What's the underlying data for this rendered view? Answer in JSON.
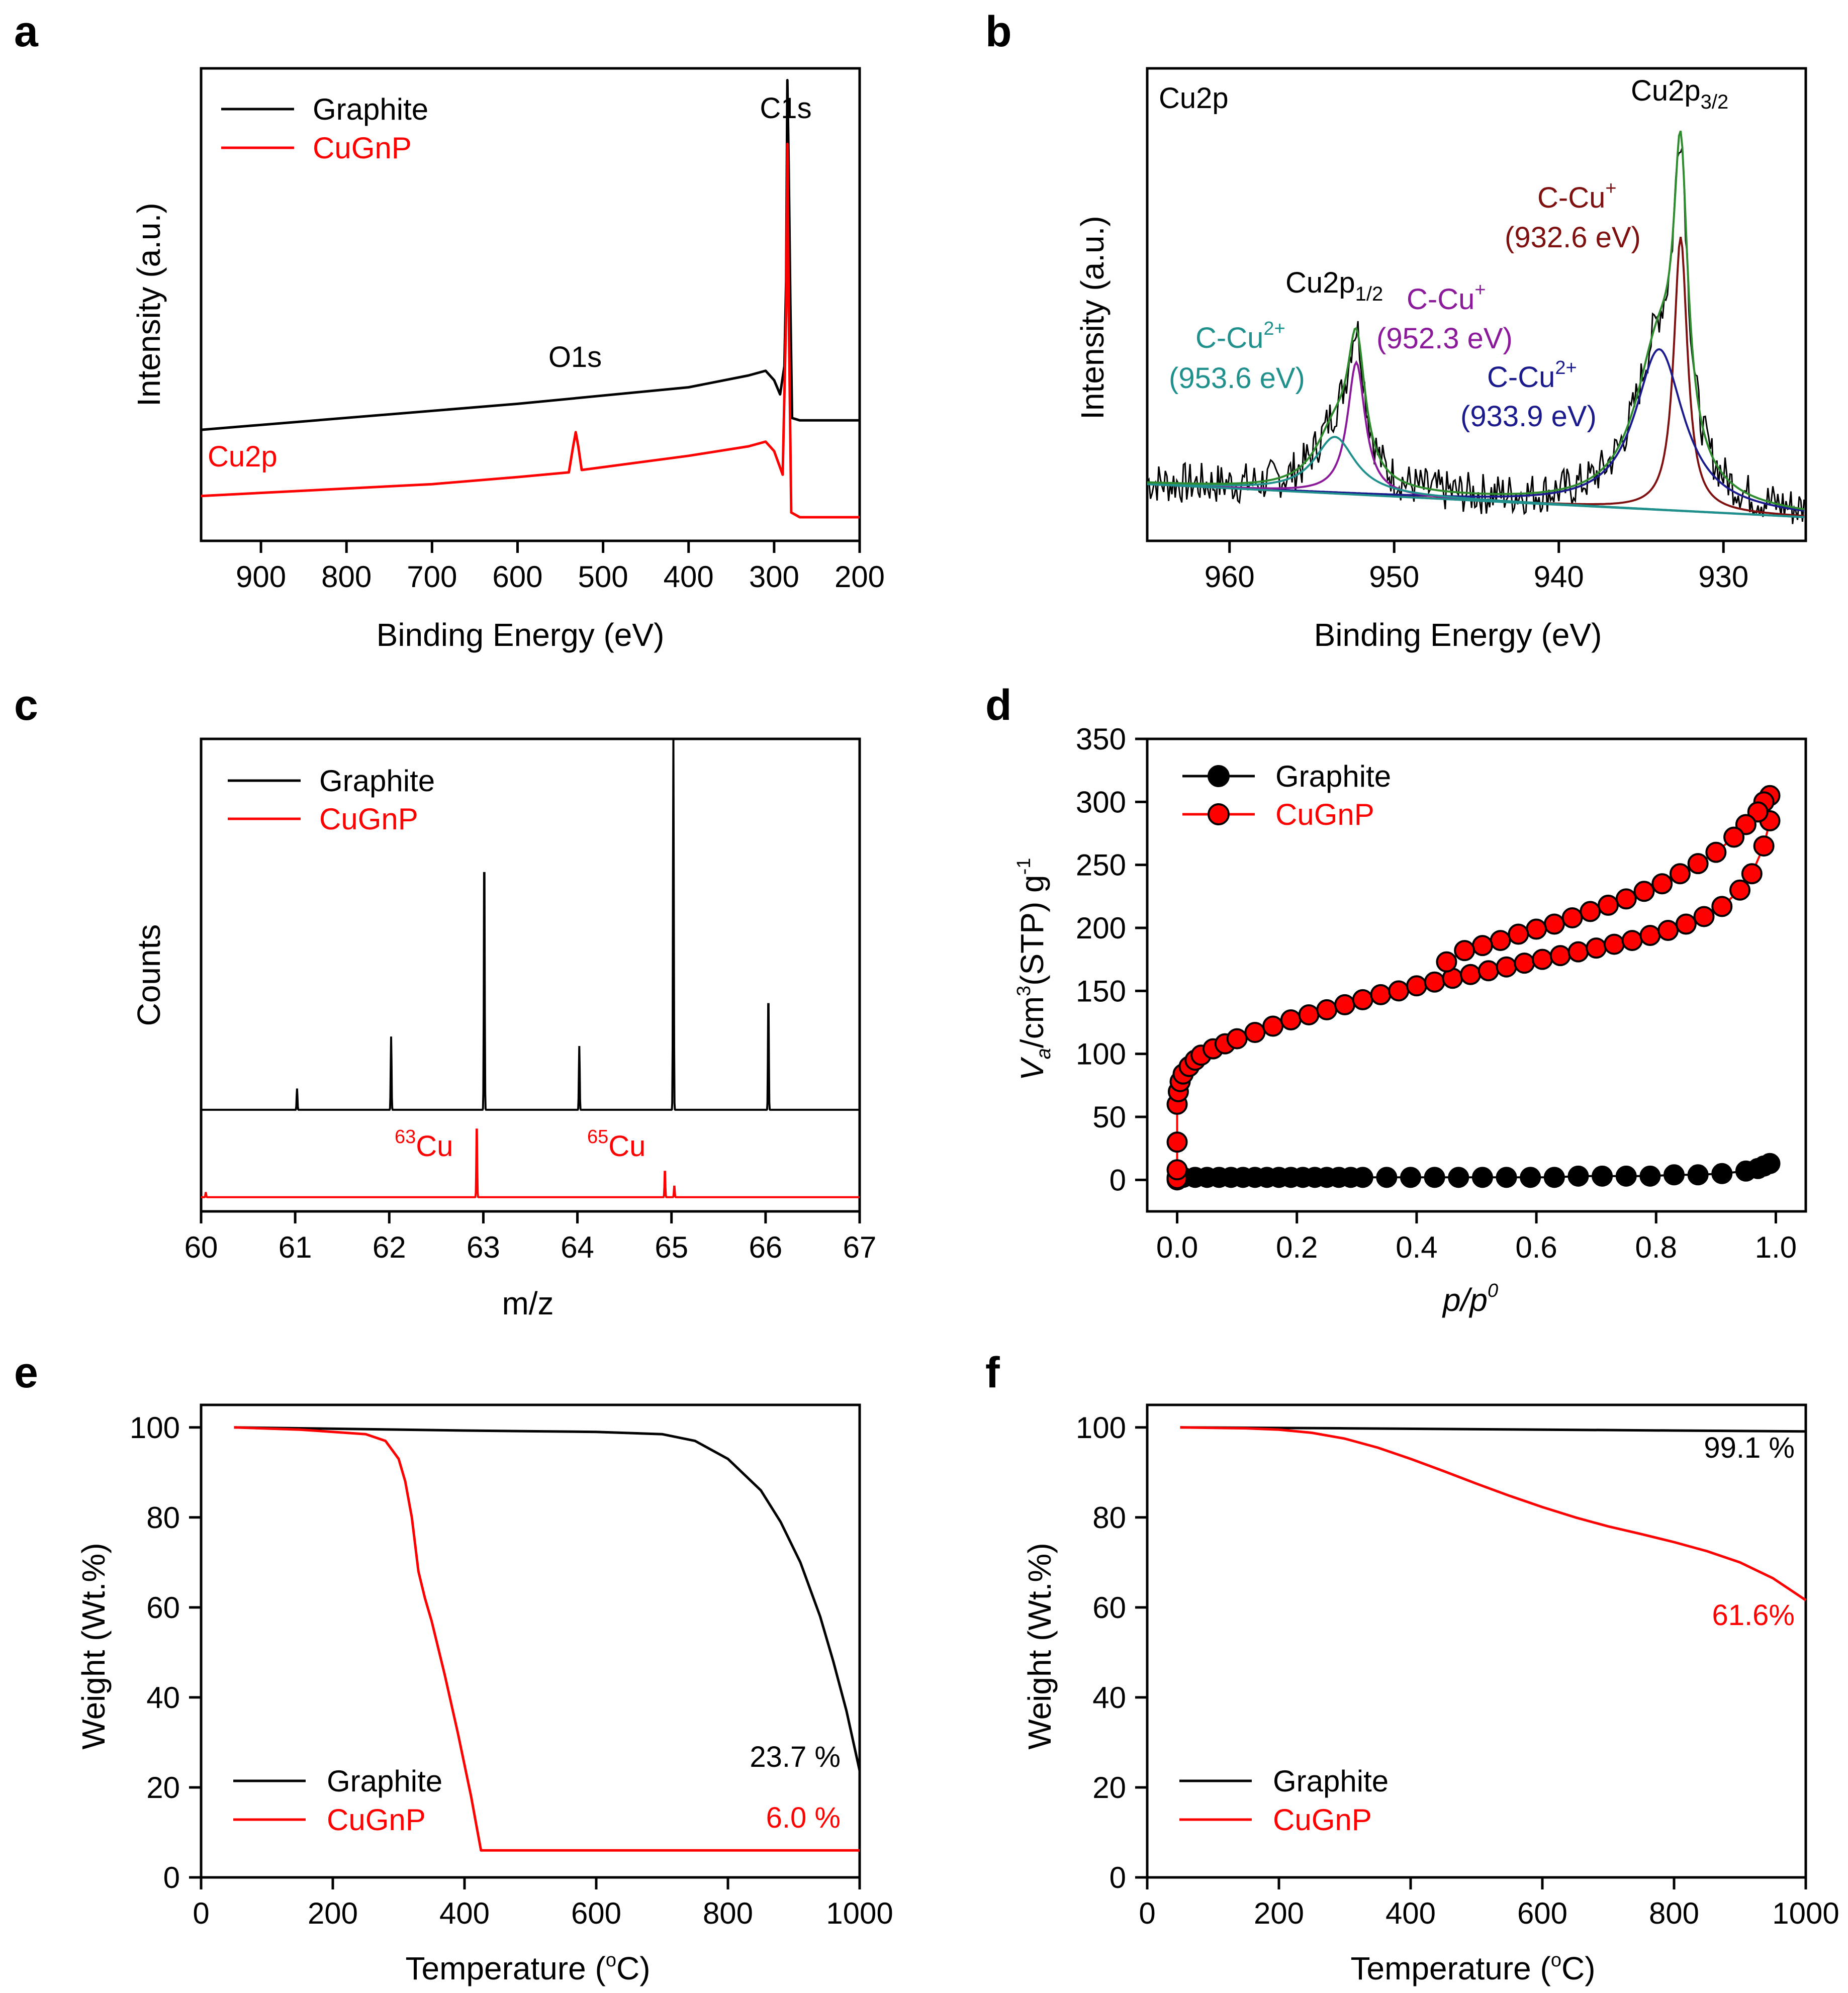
{
  "panels": [
    {
      "label": "a",
      "type": "line",
      "xlabel": "Binding Energy (eV)",
      "ylabel": "Intensity (a.u.)",
      "xlim": [
        970,
        200
      ],
      "xticks": [
        900,
        800,
        700,
        600,
        500,
        400,
        300,
        200
      ],
      "legend": [
        "Graphite",
        "CuGnP"
      ],
      "annotations": {
        "c1s": "C1s",
        "o1s": "O1s",
        "cu2p": "Cu2p"
      },
      "series": [
        {
          "name": "Graphite",
          "color": "#000000",
          "x": [
            970,
            600,
            400,
            330,
            310,
            300,
            293,
            288,
            286,
            284.5,
            283,
            281,
            279,
            270,
            200
          ],
          "y": [
            0.235,
            0.29,
            0.325,
            0.35,
            0.36,
            0.34,
            0.31,
            0.37,
            0.55,
            0.975,
            0.8,
            0.5,
            0.26,
            0.255,
            0.255
          ]
        },
        {
          "name": "CuGnP",
          "color": "#ff0000",
          "x": [
            970,
            700,
            600,
            540,
            535,
            532,
            529,
            525,
            400,
            330,
            310,
            300,
            290,
            286,
            284.5,
            283,
            280,
            270,
            200
          ],
          "y": [
            0.095,
            0.12,
            0.135,
            0.145,
            0.2,
            0.23,
            0.2,
            0.15,
            0.18,
            0.2,
            0.21,
            0.19,
            0.14,
            0.48,
            0.84,
            0.5,
            0.06,
            0.05,
            0.05
          ]
        }
      ]
    },
    {
      "label": "b",
      "type": "line",
      "xlabel": "Binding Energy (eV)",
      "ylabel": "Intensity (a.u.)",
      "xlim": [
        965,
        925
      ],
      "xticks": [
        960,
        950,
        940,
        930
      ],
      "title": "Cu2p",
      "annotations": {
        "cu2p32": "Cu2p",
        "cu2p32_sub": "3/2",
        "cu2p12": "Cu2p",
        "cu2p12_sub": "1/2",
        "ccu_plus_a": "C-Cu",
        "ccu_plus_a_sup": "+",
        "ccu_plus_a_val": "(932.6 eV)",
        "ccu_plus_b": "C-Cu",
        "ccu_plus_b_sup": "+",
        "ccu_plus_b_val": "(952.3 eV)",
        "ccu2_a": "C-Cu",
        "ccu2_a_sup": "2+",
        "ccu2_a_val": "(953.6 eV)",
        "ccu2_b": "C-Cu",
        "ccu2_b_sup": "2+",
        "ccu2_b_val": "(933.9 eV)"
      },
      "peaks": [
        {
          "name": "C-Cu+ 932.6",
          "center": 932.6,
          "fwhm": 1.0,
          "amp": 0.58,
          "color": "#7f1010"
        },
        {
          "name": "C-Cu2+ 933.9",
          "center": 933.9,
          "fwhm": 3.6,
          "amp": 0.34,
          "color": "#1a1a8c"
        },
        {
          "name": "C-Cu+ 952.3",
          "center": 952.3,
          "fwhm": 1.3,
          "amp": 0.28,
          "color": "#8b1a9b"
        },
        {
          "name": "C-Cu2+ 953.6",
          "center": 953.6,
          "fwhm": 3.0,
          "amp": 0.12,
          "color": "#20908c"
        }
      ],
      "background": {
        "color": "#20908c",
        "x": [
          965,
          925
        ],
        "y": [
          0.12,
          0.05
        ]
      },
      "envelope_color": "#2e8b2e"
    },
    {
      "label": "c",
      "type": "line",
      "xlabel": "m/z",
      "ylabel": "Counts",
      "xlim": [
        60,
        67
      ],
      "xticks": [
        60,
        61,
        62,
        63,
        64,
        65,
        66,
        67
      ],
      "legend": [
        "Graphite",
        "CuGnP"
      ],
      "annotations": {
        "cu63_sup": "63",
        "cu63": "Cu",
        "cu65_sup": "65",
        "cu65": "Cu"
      },
      "series": [
        {
          "name": "Graphite",
          "color": "#000000",
          "baseline": 0.215,
          "peaks": [
            [
              61.02,
              0.045
            ],
            [
              62.02,
              0.155
            ],
            [
              63.01,
              0.56
            ],
            [
              64.02,
              0.135
            ],
            [
              65.02,
              0.785
            ],
            [
              66.03,
              0.25
            ]
          ]
        },
        {
          "name": "CuGnP",
          "color": "#ff0000",
          "baseline": 0.03,
          "peaks": [
            [
              62.93,
              0.16
            ],
            [
              64.93,
              0.06
            ],
            [
              65.03,
              0.025
            ],
            [
              60.05,
              0.01
            ]
          ]
        }
      ]
    },
    {
      "label": "d",
      "type": "scatter",
      "xlabel": "p/p",
      "xlabel_sup": "0",
      "ylabel_v": "V",
      "ylabel_a": "a",
      "ylabel_cm": "/cm",
      "ylabel_3": "3",
      "ylabel_stp": "(STP) g",
      "ylabel_m1": "-1",
      "xlim": [
        -0.05,
        1.05
      ],
      "ylim": [
        -25,
        350
      ],
      "xticks": [
        0.0,
        0.2,
        0.4,
        0.6,
        0.8,
        1.0
      ],
      "xticklabels": [
        "0.0",
        "0.2",
        "0.4",
        "0.6",
        "0.8",
        "1.0"
      ],
      "yticks": [
        0,
        50,
        100,
        150,
        200,
        250,
        300,
        350
      ],
      "legend": [
        "Graphite",
        "CuGnP"
      ],
      "series": [
        {
          "name": "Graphite",
          "color": "#000000",
          "x": [
            0.0,
            0.0,
            0.0,
            0.01,
            0.03,
            0.05,
            0.07,
            0.09,
            0.11,
            0.13,
            0.15,
            0.17,
            0.19,
            0.21,
            0.23,
            0.25,
            0.27,
            0.29,
            0.31,
            0.35,
            0.39,
            0.43,
            0.47,
            0.51,
            0.55,
            0.59,
            0.63,
            0.67,
            0.71,
            0.75,
            0.79,
            0.83,
            0.87,
            0.91,
            0.95,
            0.97,
            0.98,
            0.99
          ],
          "y": [
            0,
            1,
            2,
            2,
            2,
            2,
            2,
            2,
            2,
            2,
            2,
            2,
            2,
            2,
            2,
            2,
            2,
            2,
            2,
            2,
            2,
            2,
            2,
            2,
            2,
            2,
            2,
            3,
            3,
            3,
            3,
            4,
            4,
            5,
            7,
            9,
            11,
            13
          ]
        },
        {
          "name": "CuGnP ads",
          "color": "#ff0000",
          "x": [
            0.0,
            0.0,
            0.0,
            0.0,
            0.002,
            0.005,
            0.01,
            0.02,
            0.03,
            0.04,
            0.06,
            0.08,
            0.1,
            0.13,
            0.16,
            0.19,
            0.22,
            0.25,
            0.28,
            0.31,
            0.34,
            0.37,
            0.4,
            0.43,
            0.46,
            0.49,
            0.52,
            0.55,
            0.58,
            0.61,
            0.64,
            0.67,
            0.7,
            0.73,
            0.76,
            0.79,
            0.82,
            0.85,
            0.88,
            0.91,
            0.94,
            0.96,
            0.98,
            0.99
          ],
          "y": [
            1,
            8,
            30,
            60,
            70,
            78,
            84,
            90,
            95,
            99,
            104,
            108,
            112,
            117,
            122,
            127,
            131,
            135,
            139,
            143,
            147,
            150,
            154,
            157,
            160,
            163,
            166,
            169,
            172,
            175,
            178,
            181,
            184,
            187,
            190,
            194,
            198,
            203,
            209,
            217,
            230,
            243,
            265,
            285
          ]
        },
        {
          "name": "CuGnP des",
          "color": "#ff0000",
          "x": [
            0.99,
            0.98,
            0.97,
            0.95,
            0.93,
            0.9,
            0.87,
            0.84,
            0.81,
            0.78,
            0.75,
            0.72,
            0.69,
            0.66,
            0.63,
            0.6,
            0.57,
            0.54,
            0.51,
            0.48,
            0.45
          ],
          "y": [
            305,
            300,
            292,
            282,
            272,
            260,
            251,
            243,
            235,
            229,
            223,
            218,
            213,
            208,
            203,
            199,
            195,
            190,
            186,
            182,
            173
          ]
        }
      ]
    },
    {
      "label": "e",
      "type": "line",
      "xlabel": "Temperature (",
      "xlabel_sup": "o",
      "xlabel_end": "C)",
      "ylabel": "Weight (Wt.%)",
      "xlim": [
        0,
        1000
      ],
      "ylim": [
        0,
        105
      ],
      "xticks": [
        0,
        200,
        400,
        600,
        800,
        1000
      ],
      "yticks": [
        0,
        20,
        40,
        60,
        80,
        100
      ],
      "legend": [
        "Graphite",
        "CuGnP"
      ],
      "annotations": {
        "graphite_end": "23.7 %",
        "cugnp_end": "6.0 %"
      },
      "series": [
        {
          "name": "Graphite",
          "color": "#000000",
          "x": [
            50,
            200,
            400,
            600,
            700,
            750,
            800,
            850,
            880,
            910,
            940,
            960,
            980,
            1000
          ],
          "y": [
            100,
            99.7,
            99.3,
            99.0,
            98.5,
            97,
            93,
            86,
            79,
            70,
            58,
            48,
            37,
            23.7
          ]
        },
        {
          "name": "CuGnP",
          "color": "#ff0000",
          "x": [
            50,
            150,
            250,
            280,
            300,
            310,
            320,
            330,
            340,
            350,
            370,
            390,
            410,
            420,
            425,
            700,
            1000
          ],
          "y": [
            100,
            99.5,
            98.5,
            97,
            93,
            88,
            80,
            68,
            62,
            57,
            45,
            32,
            18,
            10,
            6.0,
            6.0,
            6.0
          ]
        }
      ]
    },
    {
      "label": "f",
      "type": "line",
      "xlabel": "Temperature (",
      "xlabel_sup": "o",
      "xlabel_end": "C)",
      "ylabel": "Weight (Wt.%)",
      "xlim": [
        0,
        1000
      ],
      "ylim": [
        0,
        105
      ],
      "xticks": [
        0,
        200,
        400,
        600,
        800,
        1000
      ],
      "yticks": [
        0,
        20,
        40,
        60,
        80,
        100
      ],
      "legend": [
        "Graphite",
        "CuGnP"
      ],
      "annotations": {
        "graphite_end": "99.1 %",
        "cugnp_end": "61.6%"
      },
      "series": [
        {
          "name": "Graphite",
          "color": "#000000",
          "x": [
            50,
            300,
            600,
            800,
            1000
          ],
          "y": [
            100,
            99.8,
            99.5,
            99.3,
            99.1
          ]
        },
        {
          "name": "CuGnP",
          "color": "#ff0000",
          "x": [
            50,
            150,
            200,
            250,
            300,
            350,
            400,
            450,
            500,
            550,
            600,
            650,
            700,
            750,
            800,
            850,
            900,
            950,
            1000
          ],
          "y": [
            100,
            99.8,
            99.5,
            98.8,
            97.5,
            95.5,
            93.0,
            90.3,
            87.5,
            84.8,
            82.3,
            80.0,
            78.0,
            76.3,
            74.5,
            72.5,
            70.0,
            66.5,
            61.6
          ]
        }
      ]
    }
  ]
}
